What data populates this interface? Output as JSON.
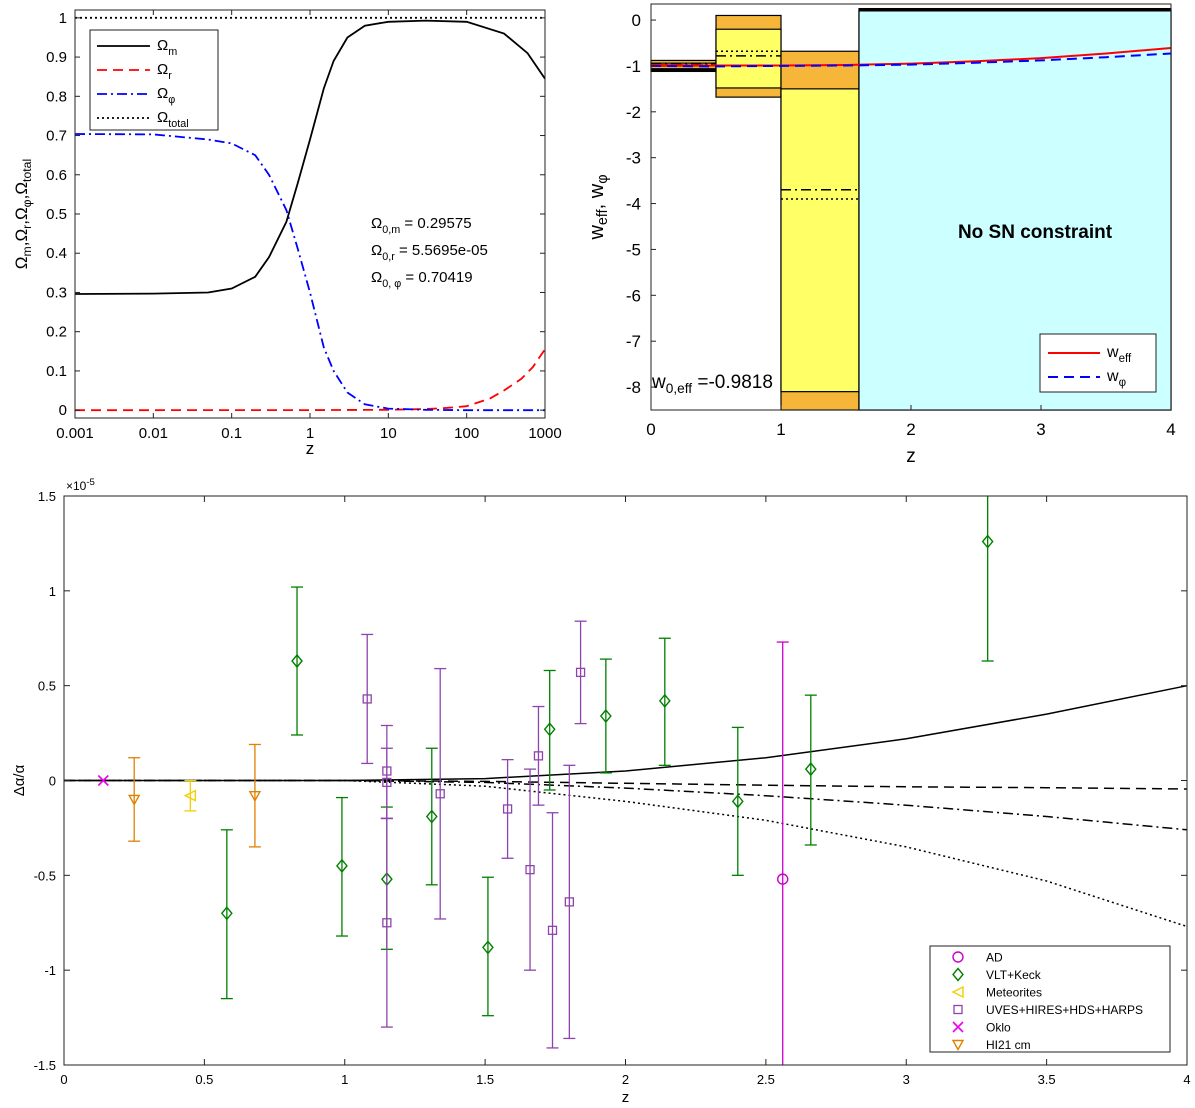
{
  "chart_data": [
    {
      "id": "omega",
      "type": "line",
      "xscale": "log",
      "xlim": [
        0.001,
        1000
      ],
      "ylim": [
        -0.02,
        1.02
      ],
      "xlabel": "z",
      "xticks": [
        0.001,
        0.01,
        0.1,
        1,
        10,
        100,
        1000
      ],
      "xtick_labels": [
        "0.001",
        "0.01",
        "0.1",
        "1",
        "10",
        "100",
        "1000"
      ],
      "yticks": [
        0,
        0.1,
        0.2,
        0.3,
        0.4,
        0.5,
        0.6,
        0.7,
        0.8,
        0.9,
        1
      ],
      "ytick_labels": [
        "0",
        "0.1",
        "0.2",
        "0.3",
        "0.4",
        "0.5",
        "0.6",
        "0.7",
        "0.8",
        "0.9",
        "1"
      ],
      "ylabel_parts": [
        "Ω",
        "m",
        ",Ω",
        "r",
        ",Ω",
        "φ",
        ",Ω",
        "total"
      ],
      "legend_position": "top-left",
      "series": [
        {
          "name": "Ω",
          "sub": "m",
          "color": "#000000",
          "dash": "solid",
          "x": [
            0.001,
            0.01,
            0.05,
            0.1,
            0.2,
            0.3,
            0.5,
            0.7,
            1,
            1.5,
            2,
            3,
            5,
            10,
            30,
            100,
            300,
            600,
            1000
          ],
          "y": [
            0.296,
            0.297,
            0.3,
            0.31,
            0.34,
            0.39,
            0.48,
            0.58,
            0.69,
            0.82,
            0.89,
            0.95,
            0.98,
            0.99,
            0.993,
            0.99,
            0.96,
            0.91,
            0.845
          ]
        },
        {
          "name": "Ω",
          "sub": "r",
          "color": "#ff0000",
          "dash": "dashed",
          "x": [
            0.001,
            1,
            10,
            30,
            50,
            100,
            200,
            300,
            500,
            700,
            1000
          ],
          "y": [
            0,
            0.0001,
            0.001,
            0.003,
            0.005,
            0.01,
            0.03,
            0.05,
            0.08,
            0.11,
            0.155
          ]
        },
        {
          "name": "Ω",
          "sub": "φ",
          "color": "#0000ff",
          "dash": "dashdot",
          "x": [
            0.001,
            0.01,
            0.05,
            0.1,
            0.2,
            0.3,
            0.5,
            0.7,
            1,
            1.5,
            2,
            3,
            5,
            10,
            30,
            100,
            1000
          ],
          "y": [
            0.704,
            0.703,
            0.69,
            0.68,
            0.65,
            0.6,
            0.51,
            0.41,
            0.3,
            0.16,
            0.1,
            0.045,
            0.015,
            0.004,
            0.001,
            0,
            0
          ]
        },
        {
          "name": "Ω",
          "sub": "total",
          "color": "#000000",
          "dash": "dotted",
          "x": [
            0.001,
            1000
          ],
          "y": [
            1,
            1
          ]
        }
      ],
      "annotations": [
        {
          "base": "Ω",
          "sub": "0,m",
          "value": " = 0.29575"
        },
        {
          "base": "Ω",
          "sub": "0,r",
          "value": " = 5.5695e-05"
        },
        {
          "base": "Ω",
          "sub": "0, φ",
          "value": " = 0.70419"
        }
      ]
    },
    {
      "id": "weff",
      "type": "line",
      "xlim": [
        0,
        4
      ],
      "ylim": [
        -8.5,
        0.35
      ],
      "xlabel": "z",
      "ylabel_parts": [
        "w",
        "eff",
        ", w",
        "φ"
      ],
      "xticks": [
        0,
        1,
        2,
        3,
        4
      ],
      "xtick_labels": [
        "0",
        "1",
        "2",
        "3",
        "4"
      ],
      "yticks": [
        0,
        -1,
        -2,
        -3,
        -4,
        -5,
        -6,
        -7,
        -8
      ],
      "ytick_labels": [
        "0",
        "-1",
        "-2",
        "-3",
        "-4",
        "-5",
        "-6",
        "-7",
        "-8"
      ],
      "legend_position": "bottom-right",
      "series": [
        {
          "name": "w",
          "sub": "eff",
          "color": "#ff0000",
          "dash": "solid",
          "x": [
            0,
            0.5,
            1,
            1.5,
            2,
            2.5,
            3,
            3.5,
            4
          ],
          "y": [
            -0.98,
            -0.99,
            -0.99,
            -0.98,
            -0.95,
            -0.9,
            -0.83,
            -0.73,
            -0.61
          ]
        },
        {
          "name": "w",
          "sub": "φ",
          "color": "#0000ff",
          "dash": "dashed",
          "x": [
            0,
            0.5,
            1,
            1.5,
            2,
            2.5,
            3,
            3.5,
            4
          ],
          "y": [
            -1.0,
            -1.01,
            -1.0,
            -0.99,
            -0.97,
            -0.93,
            -0.88,
            -0.81,
            -0.73
          ]
        }
      ],
      "bins": [
        {
          "x0": 0,
          "x1": 0.5,
          "outer": [
            -1.12,
            -0.88
          ],
          "inner": [
            -1.0,
            -0.94
          ],
          "solid": [
            -1.08
          ],
          "dashdot": [
            -0.95
          ],
          "dotted": [
            -0.98
          ],
          "fill_outer": "#f6b63a",
          "fill_inner": "#ffff66"
        },
        {
          "x0": 0.5,
          "x1": 1.0,
          "outer": [
            -1.68,
            0.1
          ],
          "inner": [
            -1.48,
            -0.2
          ],
          "solid": [],
          "dashdot": [
            -0.78
          ],
          "dotted": [
            -0.68
          ],
          "fill_outer": "#f6b63a",
          "fill_inner": "#ffff66"
        },
        {
          "x0": 1.0,
          "x1": 1.6,
          "outer": [
            -8.5,
            -0.68
          ],
          "inner": [
            -8.1,
            -1.5
          ],
          "solid": [],
          "dashdot": [
            -3.7
          ],
          "dotted": [
            -3.9
          ],
          "fill_outer": "#f6b63a",
          "fill_inner": "#ffff66"
        },
        {
          "x0": 1.6,
          "x1": 4.0,
          "outer": [
            -8.5,
            0.25
          ],
          "inner": [
            -8.5,
            0.2
          ],
          "solid": [
            0.22
          ],
          "dashdot": [],
          "dotted": [],
          "fill_outer": "#ccffff",
          "fill_inner": "#ccffff"
        }
      ],
      "annotations": [
        {
          "text": "No SN constraint"
        },
        {
          "base": "w",
          "sub": "0,eff",
          "value": " =-0.9818"
        }
      ]
    },
    {
      "id": "alpha",
      "type": "scatter",
      "xlim": [
        0,
        4
      ],
      "ylim": [
        -1.5,
        1.5
      ],
      "xlabel": "z",
      "ylabel": "Δα/α",
      "exponent_label": "×10",
      "exponent_power": "-5",
      "xticks": [
        0,
        0.5,
        1,
        1.5,
        2,
        2.5,
        3,
        3.5,
        4
      ],
      "xtick_labels": [
        "0",
        "0.5",
        "1",
        "1.5",
        "2",
        "2.5",
        "3",
        "3.5",
        "4"
      ],
      "yticks": [
        1.5,
        1,
        0.5,
        0,
        -0.5,
        -1,
        -1.5
      ],
      "ytick_labels": [
        "1.5",
        "1",
        "0.5",
        "0",
        "-0.5",
        "-1",
        "-1.5"
      ],
      "legend_position": "bottom-right",
      "model_curves": [
        {
          "dash": "solid",
          "x": [
            0,
            0.5,
            1,
            1.5,
            2,
            2.5,
            3,
            3.5,
            4
          ],
          "y": [
            0,
            0,
            0,
            0.01,
            0.05,
            0.12,
            0.22,
            0.35,
            0.5
          ]
        },
        {
          "dash": "dashed",
          "x": [
            0,
            0.5,
            1,
            1.5,
            2,
            2.5,
            3,
            3.5,
            4
          ],
          "y": [
            0,
            0,
            0,
            -0.005,
            -0.015,
            -0.025,
            -0.033,
            -0.038,
            -0.045
          ]
        },
        {
          "dash": "dashdot",
          "x": [
            0,
            0.5,
            1,
            1.5,
            2,
            2.5,
            3,
            3.5,
            4
          ],
          "y": [
            0,
            0,
            0,
            -0.01,
            -0.04,
            -0.08,
            -0.13,
            -0.19,
            -0.26
          ]
        },
        {
          "dash": "dotted",
          "x": [
            0,
            0.5,
            1,
            1.5,
            2,
            2.5,
            3,
            3.5,
            4
          ],
          "y": [
            0,
            0,
            0,
            -0.03,
            -0.11,
            -0.21,
            -0.35,
            -0.53,
            -0.77
          ]
        }
      ],
      "series": [
        {
          "name": "AD",
          "marker": "circle",
          "color": "#cc00cc",
          "points": [
            [
              2.56,
              -0.52,
              -1.9,
              0.73
            ]
          ]
        },
        {
          "name": "VLT+Keck",
          "marker": "diamond",
          "color": "#008000",
          "points": [
            [
              0.58,
              -0.7,
              -1.15,
              -0.26
            ],
            [
              0.83,
              0.63,
              0.24,
              1.02
            ],
            [
              0.99,
              -0.45,
              -0.82,
              -0.09
            ],
            [
              1.15,
              -0.52,
              -0.89,
              -0.14
            ],
            [
              1.31,
              -0.19,
              -0.55,
              0.17
            ],
            [
              1.51,
              -0.88,
              -1.24,
              -0.51
            ],
            [
              1.73,
              0.27,
              -0.05,
              0.58
            ],
            [
              1.93,
              0.34,
              0.04,
              0.64
            ],
            [
              2.14,
              0.42,
              0.08,
              0.75
            ],
            [
              2.4,
              -0.11,
              -0.5,
              0.28
            ],
            [
              2.66,
              0.06,
              -0.34,
              0.45
            ],
            [
              3.29,
              1.26,
              0.63,
              1.9
            ]
          ]
        },
        {
          "name": "Meteorites",
          "marker": "triangle-left",
          "color": "#f0d000",
          "points": [
            [
              0.45,
              -0.08,
              -0.16,
              0.0
            ]
          ]
        },
        {
          "name": "UVES+HIRES+HDS+HARPS",
          "marker": "square",
          "color": "#8e44ad",
          "points": [
            [
              1.08,
              0.43,
              0.09,
              0.77
            ],
            [
              1.15,
              0.05,
              -0.2,
              0.29
            ],
            [
              1.15,
              -0.01,
              -0.2,
              0.17
            ],
            [
              1.15,
              -0.75,
              -1.3,
              -0.2
            ],
            [
              1.34,
              -0.07,
              -0.73,
              0.59
            ],
            [
              1.58,
              -0.15,
              -0.41,
              0.11
            ],
            [
              1.66,
              -0.47,
              -1.0,
              0.06
            ],
            [
              1.69,
              0.13,
              -0.13,
              0.39
            ],
            [
              1.74,
              -0.79,
              -1.41,
              -0.17
            ],
            [
              1.8,
              -0.64,
              -1.36,
              0.08
            ],
            [
              1.84,
              0.57,
              0.3,
              0.84
            ]
          ]
        },
        {
          "name": "Oklo",
          "marker": "x",
          "color": "#ee00ee",
          "points": [
            [
              0.14,
              0,
              0,
              0
            ]
          ]
        },
        {
          "name": "HI21 cm",
          "marker": "triangle-down",
          "color": "#e08000",
          "points": [
            [
              0.25,
              -0.1,
              -0.32,
              0.12
            ],
            [
              0.68,
              -0.08,
              -0.35,
              0.19
            ]
          ]
        }
      ]
    }
  ]
}
